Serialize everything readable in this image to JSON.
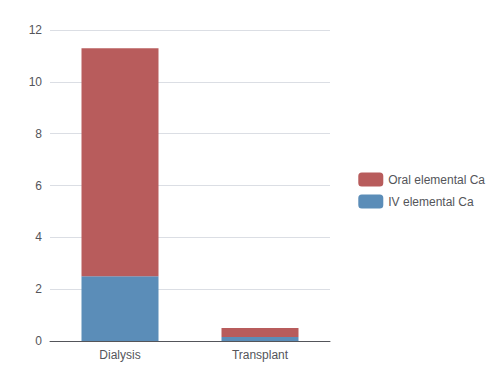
{
  "chart_data": {
    "type": "bar",
    "stacked": true,
    "categories": [
      "Dialysis",
      "Transplant"
    ],
    "series": [
      {
        "name": "IV elemental Ca",
        "color": "#5b8db8",
        "values": [
          2.5,
          0.15
        ]
      },
      {
        "name": "Oral elemental Ca",
        "color": "#b85c5c",
        "values": [
          8.8,
          0.35
        ]
      }
    ],
    "ylim": [
      0,
      12
    ],
    "yticks": [
      0,
      2,
      4,
      6,
      8,
      10,
      12
    ],
    "grid": true,
    "legend": "right"
  }
}
